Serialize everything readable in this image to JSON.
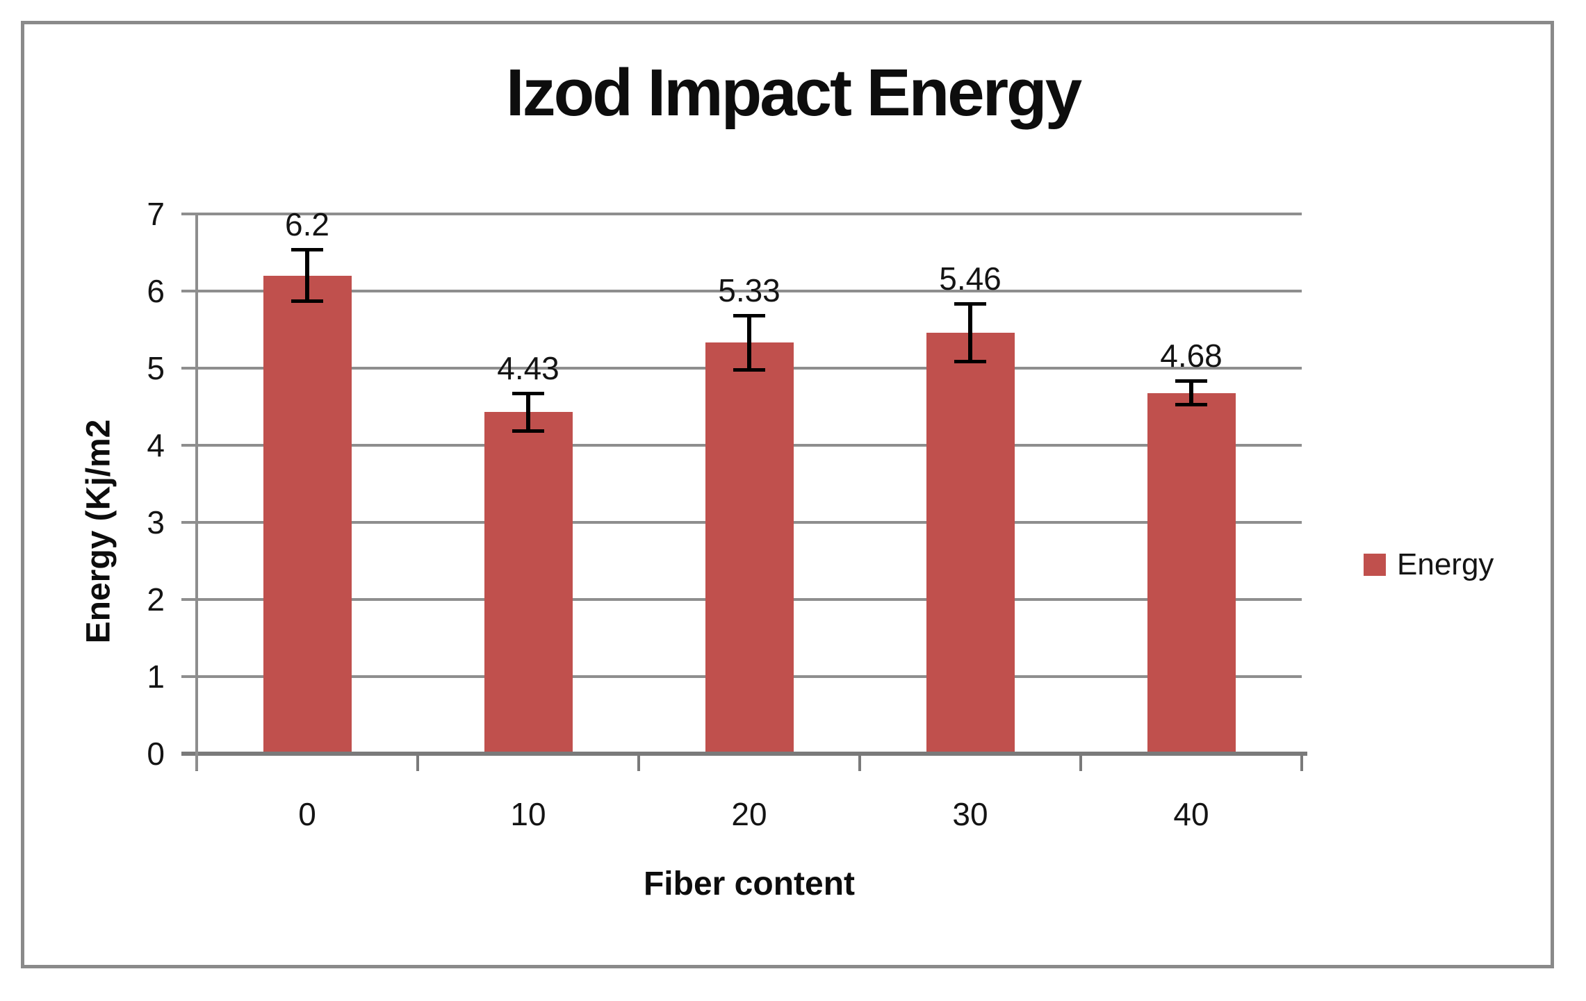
{
  "chart_data": {
    "type": "bar",
    "title": "Izod Impact Energy",
    "xlabel": "Fiber content",
    "ylabel": "Energy (Kj/m2",
    "categories": [
      "0",
      "10",
      "20",
      "30",
      "40"
    ],
    "series": [
      {
        "name": "Energy",
        "values": [
          6.2,
          4.43,
          5.33,
          5.46,
          4.68
        ],
        "labels": [
          "6.2",
          "4.43",
          "5.33",
          "5.46",
          "4.68"
        ],
        "errors": [
          0.33,
          0.24,
          0.35,
          0.37,
          0.15
        ],
        "color": "#C0504D"
      }
    ],
    "ylim": [
      0,
      7
    ],
    "ytick_step": 1,
    "yticks": [
      "0",
      "1",
      "2",
      "3",
      "4",
      "5",
      "6",
      "7"
    ],
    "grid": true,
    "legend": {
      "position": "right",
      "entries": [
        {
          "label": "Energy",
          "color": "#C0504D"
        }
      ]
    },
    "colors": {
      "bar": "#C0504D",
      "gridline": "#8E8E8E",
      "axis": "#7A7A7A",
      "error_bar": "#000000",
      "text": "#141414",
      "frame_border": "#8A8A8A",
      "background": "#FFFFFF"
    }
  }
}
